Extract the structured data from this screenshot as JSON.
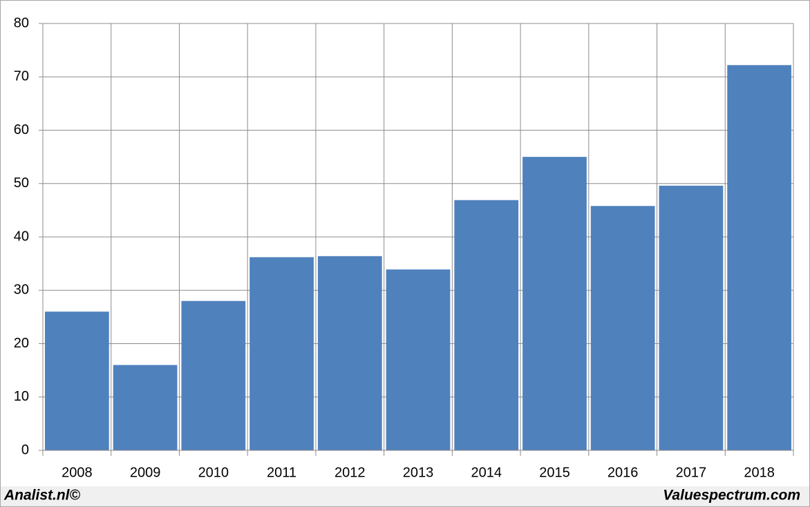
{
  "chart_data": {
    "type": "bar",
    "categories": [
      "2008",
      "2009",
      "2010",
      "2011",
      "2012",
      "2013",
      "2014",
      "2015",
      "2016",
      "2017",
      "2018"
    ],
    "values": [
      26,
      16,
      28,
      36.2,
      36.4,
      33.9,
      46.9,
      55,
      45.8,
      49.6,
      72.2
    ],
    "color": "#4f81bd",
    "ylim": [
      0,
      80
    ],
    "yticks": [
      0,
      10,
      20,
      30,
      40,
      50,
      60,
      70,
      80
    ],
    "grid": true
  },
  "footer": {
    "left": "Analist.nl©",
    "right": "Valuespectrum.com"
  }
}
